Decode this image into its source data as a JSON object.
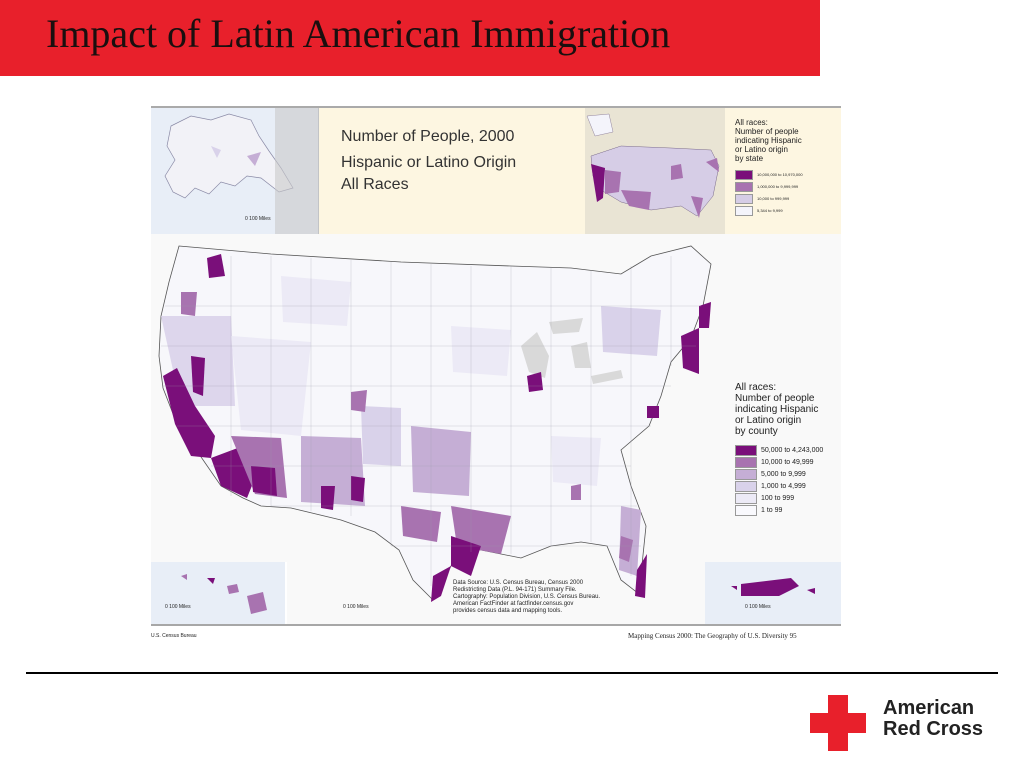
{
  "slide": {
    "title": "Impact of Latin American Immigration"
  },
  "map": {
    "header_title_lines": [
      "Number of People, 2000",
      "Hispanic or Latino Origin",
      "All Races"
    ],
    "state_legend": {
      "heading_lines": [
        "All races:",
        "Number of people",
        "indicating Hispanic",
        "or Latino origin",
        "by state"
      ],
      "classes": [
        {
          "label": "10,000,000 to 10,970,000",
          "color": "#7a0f7a"
        },
        {
          "label": "1,000,000 to 9,999,999",
          "color": "#a873b0"
        },
        {
          "label": "10,000 to 999,999",
          "color": "#d6cde6"
        },
        {
          "label": "5,344 to 9,999",
          "color": "#f4f4fb"
        }
      ]
    },
    "county_legend": {
      "heading_lines": [
        "All races:",
        "Number of people",
        "indicating Hispanic",
        "or Latino origin",
        "by county"
      ],
      "classes": [
        {
          "label": "50,000 to 4,243,000",
          "color": "#7a0f7a"
        },
        {
          "label": "10,000 to 49,999",
          "color": "#a873b0"
        },
        {
          "label": "5,000 to 9,999",
          "color": "#c5aed5"
        },
        {
          "label": "1,000 to 4,999",
          "color": "#d9d2ea"
        },
        {
          "label": "100 to 999",
          "color": "#eceaf6"
        },
        {
          "label": "1 to 99",
          "color": "#f9f9fd"
        }
      ]
    },
    "scale_labels": {
      "alaska": "0   100 Miles",
      "hawaii": "0   100 Miles",
      "mainland": "0   100 Miles",
      "puerto_rico": "0       100 Miles"
    },
    "data_note": "Data Source: U.S. Census Bureau, Census 2000\nRedistricting Data (P.L. 94-171) Summary File.\nCartography: Population Division, U.S. Census Bureau.\nAmerican FactFinder at factfinder.census.gov\nprovides census data and mapping tools.",
    "source_left": "U.S. Census Bureau",
    "source_right": "Mapping Census 2000:  The Geography of U.S. Diversity  95"
  },
  "logo": {
    "line1": "American",
    "line2": "Red Cross",
    "cross_color": "#e8202b"
  },
  "colors": {
    "title_bar": "#e8202b",
    "header_panel": "#fdf6e1",
    "dark_purple": "#7a0f7a"
  }
}
